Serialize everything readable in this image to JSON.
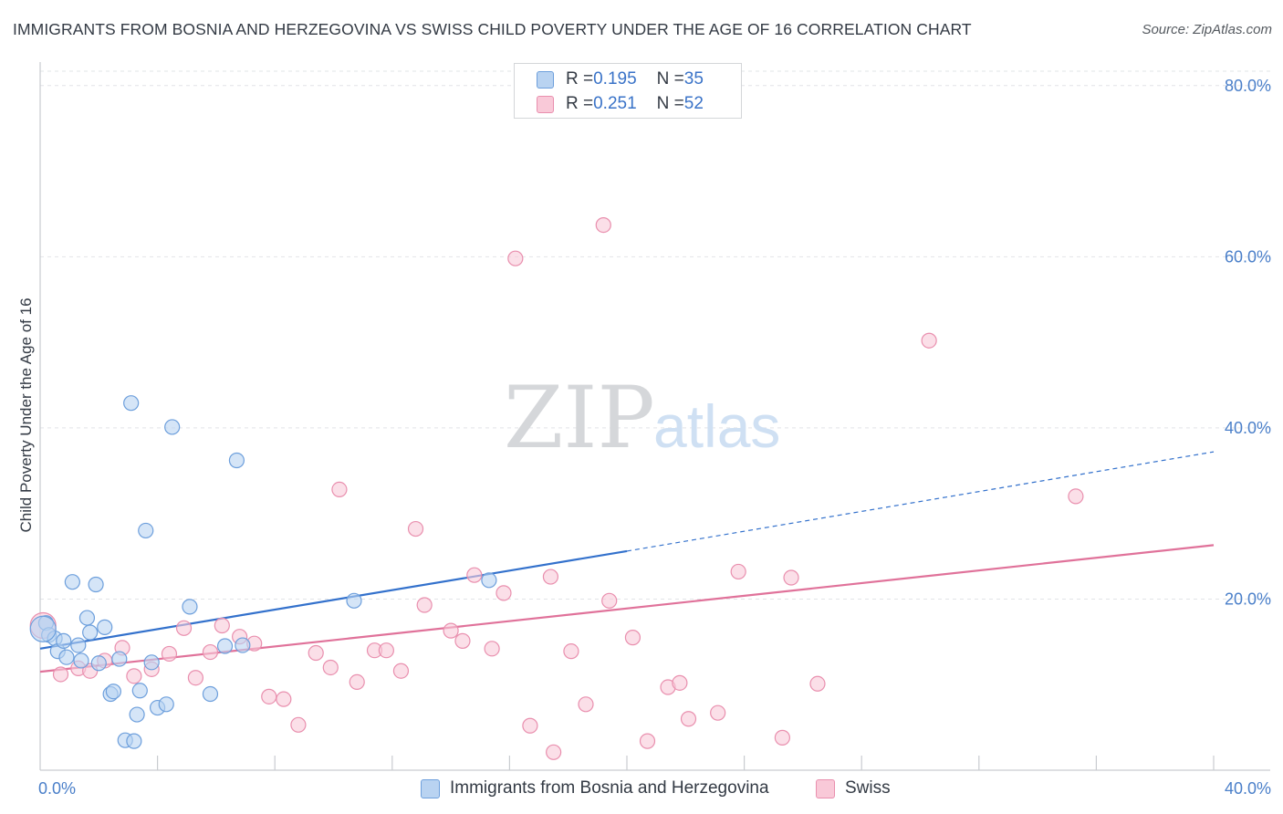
{
  "title": "IMMIGRANTS FROM BOSNIA AND HERZEGOVINA VS SWISS CHILD POVERTY UNDER THE AGE OF 16 CORRELATION CHART",
  "source": "Source: ZipAtlas.com",
  "watermark": {
    "zip": "ZIP",
    "atlas": "atlas"
  },
  "legend": {
    "rows": [
      {
        "r_label": "R = ",
        "r_value": "0.195",
        "n_label": "N = ",
        "n_value": "35"
      },
      {
        "r_label": "R = ",
        "r_value": "0.251",
        "n_label": "N = ",
        "n_value": "52"
      }
    ]
  },
  "colors": {
    "blue_fill": "#b9d3f1",
    "blue_stroke": "#6d9fdc",
    "blue_line": "#3371cc",
    "pink_fill": "#f9c9d8",
    "pink_stroke": "#e98fae",
    "pink_line": "#e0729a",
    "grid": "#e2e4e7",
    "axis": "#c9ccd0",
    "tick_text": "#4a7fc9"
  },
  "chart_data": {
    "type": "scatter",
    "title": "IMMIGRANTS FROM BOSNIA AND HERZEGOVINA VS SWISS CHILD POVERTY UNDER THE AGE OF 16 CORRELATION CHART",
    "xlabel": "",
    "ylabel": "Child Poverty Under the Age of 16",
    "xlim": [
      0,
      40
    ],
    "ylim": [
      0,
      82
    ],
    "x_ticks": [
      "0.0%",
      "40.0%"
    ],
    "y_ticks": [
      {
        "value": 20,
        "label": "20.0%"
      },
      {
        "value": 40,
        "label": "40.0%"
      },
      {
        "value": 60,
        "label": "60.0%"
      },
      {
        "value": 80,
        "label": "80.0%"
      }
    ],
    "grid": true,
    "legend_position": "top-center",
    "series": [
      {
        "name": "Immigrants from Bosnia and Herzegovina",
        "color": "blue",
        "r": 0.195,
        "n": 35,
        "trend": {
          "x0": 0,
          "y0": 14.2,
          "x1": 20,
          "y1": 25.6,
          "dashed_to_x": 40,
          "dashed_to_y": 37.2
        },
        "points": [
          [
            0.2,
            17.2
          ],
          [
            0.3,
            15.8
          ],
          [
            0.5,
            15.4
          ],
          [
            0.6,
            13.9
          ],
          [
            0.8,
            15.1
          ],
          [
            0.9,
            13.2
          ],
          [
            1.1,
            22.0
          ],
          [
            1.3,
            14.6
          ],
          [
            1.4,
            12.8
          ],
          [
            1.6,
            17.8
          ],
          [
            1.7,
            16.1
          ],
          [
            1.9,
            21.7
          ],
          [
            2.0,
            12.5
          ],
          [
            2.2,
            16.7
          ],
          [
            2.4,
            8.9
          ],
          [
            2.5,
            9.2
          ],
          [
            2.7,
            13.0
          ],
          [
            2.9,
            3.5
          ],
          [
            3.1,
            42.9
          ],
          [
            3.2,
            3.4
          ],
          [
            3.3,
            6.5
          ],
          [
            3.4,
            9.3
          ],
          [
            3.6,
            28.0
          ],
          [
            3.8,
            12.6
          ],
          [
            4.0,
            7.3
          ],
          [
            4.3,
            7.7
          ],
          [
            4.5,
            40.1
          ],
          [
            5.1,
            19.1
          ],
          [
            5.8,
            8.9
          ],
          [
            6.3,
            14.5
          ],
          [
            6.7,
            36.2
          ],
          [
            6.9,
            14.6
          ],
          [
            10.7,
            19.8
          ],
          [
            15.3,
            22.2
          ],
          [
            0.1,
            16.5
          ]
        ]
      },
      {
        "name": "Swiss",
        "color": "pink",
        "r": 0.251,
        "n": 52,
        "trend": {
          "x0": 0,
          "y0": 11.5,
          "x1": 40,
          "y1": 26.3
        },
        "points": [
          [
            0.1,
            16.9
          ],
          [
            0.7,
            11.2
          ],
          [
            1.3,
            11.9
          ],
          [
            1.7,
            11.6
          ],
          [
            2.2,
            12.8
          ],
          [
            2.8,
            14.3
          ],
          [
            3.2,
            11.0
          ],
          [
            3.8,
            11.8
          ],
          [
            4.4,
            13.6
          ],
          [
            4.9,
            16.6
          ],
          [
            5.3,
            10.8
          ],
          [
            5.8,
            13.8
          ],
          [
            6.2,
            16.9
          ],
          [
            6.8,
            15.6
          ],
          [
            7.3,
            14.8
          ],
          [
            7.8,
            8.6
          ],
          [
            8.3,
            8.3
          ],
          [
            8.8,
            5.3
          ],
          [
            9.4,
            13.7
          ],
          [
            9.9,
            12.0
          ],
          [
            10.2,
            32.8
          ],
          [
            10.8,
            10.3
          ],
          [
            11.4,
            14.0
          ],
          [
            11.8,
            14.0
          ],
          [
            12.3,
            11.6
          ],
          [
            12.8,
            28.2
          ],
          [
            13.1,
            19.3
          ],
          [
            14.0,
            16.3
          ],
          [
            14.4,
            15.1
          ],
          [
            14.8,
            22.8
          ],
          [
            15.4,
            14.2
          ],
          [
            15.8,
            20.7
          ],
          [
            16.2,
            59.8
          ],
          [
            16.7,
            5.2
          ],
          [
            17.4,
            22.6
          ],
          [
            17.5,
            2.1
          ],
          [
            18.1,
            13.9
          ],
          [
            18.6,
            7.7
          ],
          [
            19.2,
            63.7
          ],
          [
            19.4,
            19.8
          ],
          [
            20.2,
            15.5
          ],
          [
            20.7,
            3.4
          ],
          [
            21.4,
            9.7
          ],
          [
            21.8,
            10.2
          ],
          [
            22.1,
            6.0
          ],
          [
            23.1,
            6.7
          ],
          [
            23.8,
            23.2
          ],
          [
            25.3,
            3.8
          ],
          [
            25.6,
            22.5
          ],
          [
            26.5,
            10.1
          ],
          [
            30.3,
            50.2
          ],
          [
            35.3,
            32.0
          ]
        ]
      }
    ]
  }
}
